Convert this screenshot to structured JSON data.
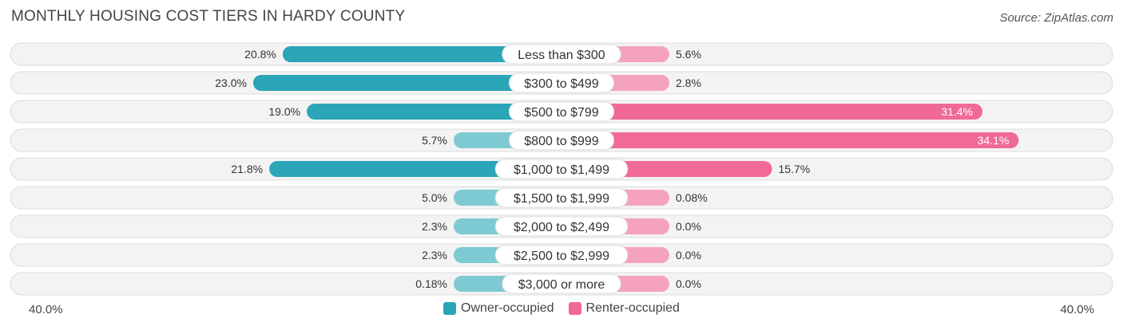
{
  "title": "MONTHLY HOUSING COST TIERS IN HARDY COUNTY",
  "source": "Source: ZipAtlas.com",
  "colors": {
    "owner_strong": "#2ba5b8",
    "owner_light": "#7ecad3",
    "renter_strong": "#f06a95",
    "renter_light": "#f5a3bd",
    "row_bg": "#f0f0f0",
    "row_border": "#dddddd"
  },
  "axis": {
    "left_label": "40.0%",
    "right_label": "40.0%"
  },
  "legend": {
    "owner": "Owner-occupied",
    "renter": "Renter-occupied"
  },
  "chart_data": {
    "type": "bar",
    "orientation": "horizontal-diverging",
    "xlim": [
      -40,
      40
    ],
    "categories": [
      "Less than $300",
      "$300 to $499",
      "$500 to $799",
      "$800 to $999",
      "$1,000 to $1,499",
      "$1,500 to $1,999",
      "$2,000 to $2,499",
      "$2,500 to $2,999",
      "$3,000 or more"
    ],
    "series": [
      {
        "name": "Owner-occupied",
        "values": [
          20.8,
          23.0,
          19.0,
          5.7,
          21.8,
          5.0,
          2.3,
          2.3,
          0.18
        ],
        "labels": [
          "20.8%",
          "23.0%",
          "19.0%",
          "5.7%",
          "21.8%",
          "5.0%",
          "2.3%",
          "2.3%",
          "0.18%"
        ]
      },
      {
        "name": "Renter-occupied",
        "values": [
          5.6,
          2.8,
          31.4,
          34.1,
          15.7,
          0.08,
          0.0,
          0.0,
          0.0
        ],
        "labels": [
          "5.6%",
          "2.8%",
          "31.4%",
          "34.1%",
          "15.7%",
          "0.08%",
          "0.0%",
          "0.0%",
          "0.0%"
        ]
      }
    ]
  }
}
